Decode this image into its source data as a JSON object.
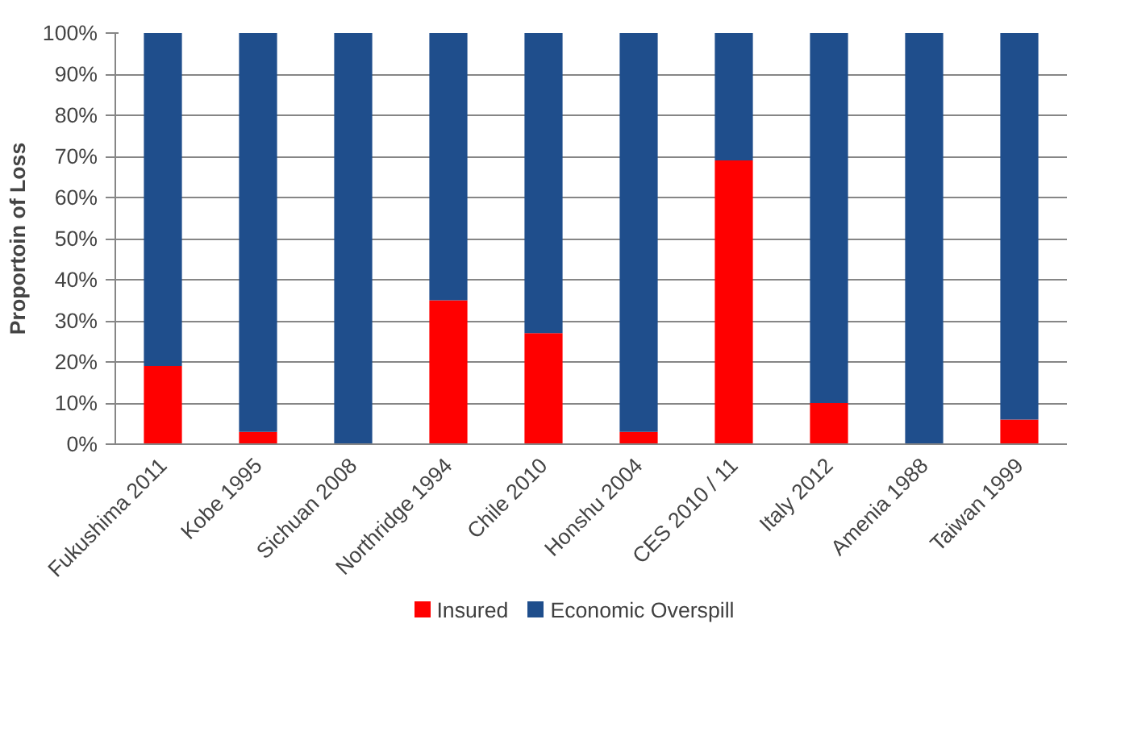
{
  "chart_data": {
    "type": "bar",
    "stacked": true,
    "ylabel": "Proportoin of Loss",
    "categories": [
      "Fukushima 2011",
      "Kobe 1995",
      "Sichuan 2008",
      "Northridge 1994",
      "Chile 2010",
      "Honshu 2004",
      "CES 2010 / 11",
      "Italy 2012",
      "Amenia 1988",
      "Taiwan 1999"
    ],
    "series": [
      {
        "name": "Insured",
        "color": "#ff0000",
        "values": [
          19,
          3,
          0,
          35,
          27,
          3,
          69,
          10,
          0,
          6
        ]
      },
      {
        "name": "Economic Overspill",
        "color": "#1f4e8c",
        "values": [
          81,
          97,
          100,
          65,
          73,
          97,
          31,
          90,
          100,
          94
        ]
      }
    ],
    "ylim": [
      0,
      100
    ],
    "yticks": [
      {
        "value": 0,
        "label": "0%"
      },
      {
        "value": 10,
        "label": "10%"
      },
      {
        "value": 20,
        "label": "20%"
      },
      {
        "value": 30,
        "label": "30%"
      },
      {
        "value": 40,
        "label": "40%"
      },
      {
        "value": 50,
        "label": "50%"
      },
      {
        "value": 60,
        "label": "60%"
      },
      {
        "value": 70,
        "label": "70%"
      },
      {
        "value": 80,
        "label": "80%"
      },
      {
        "value": 90,
        "label": "90%"
      },
      {
        "value": 100,
        "label": "100%"
      }
    ],
    "grid": "y",
    "legend": "bottom"
  }
}
